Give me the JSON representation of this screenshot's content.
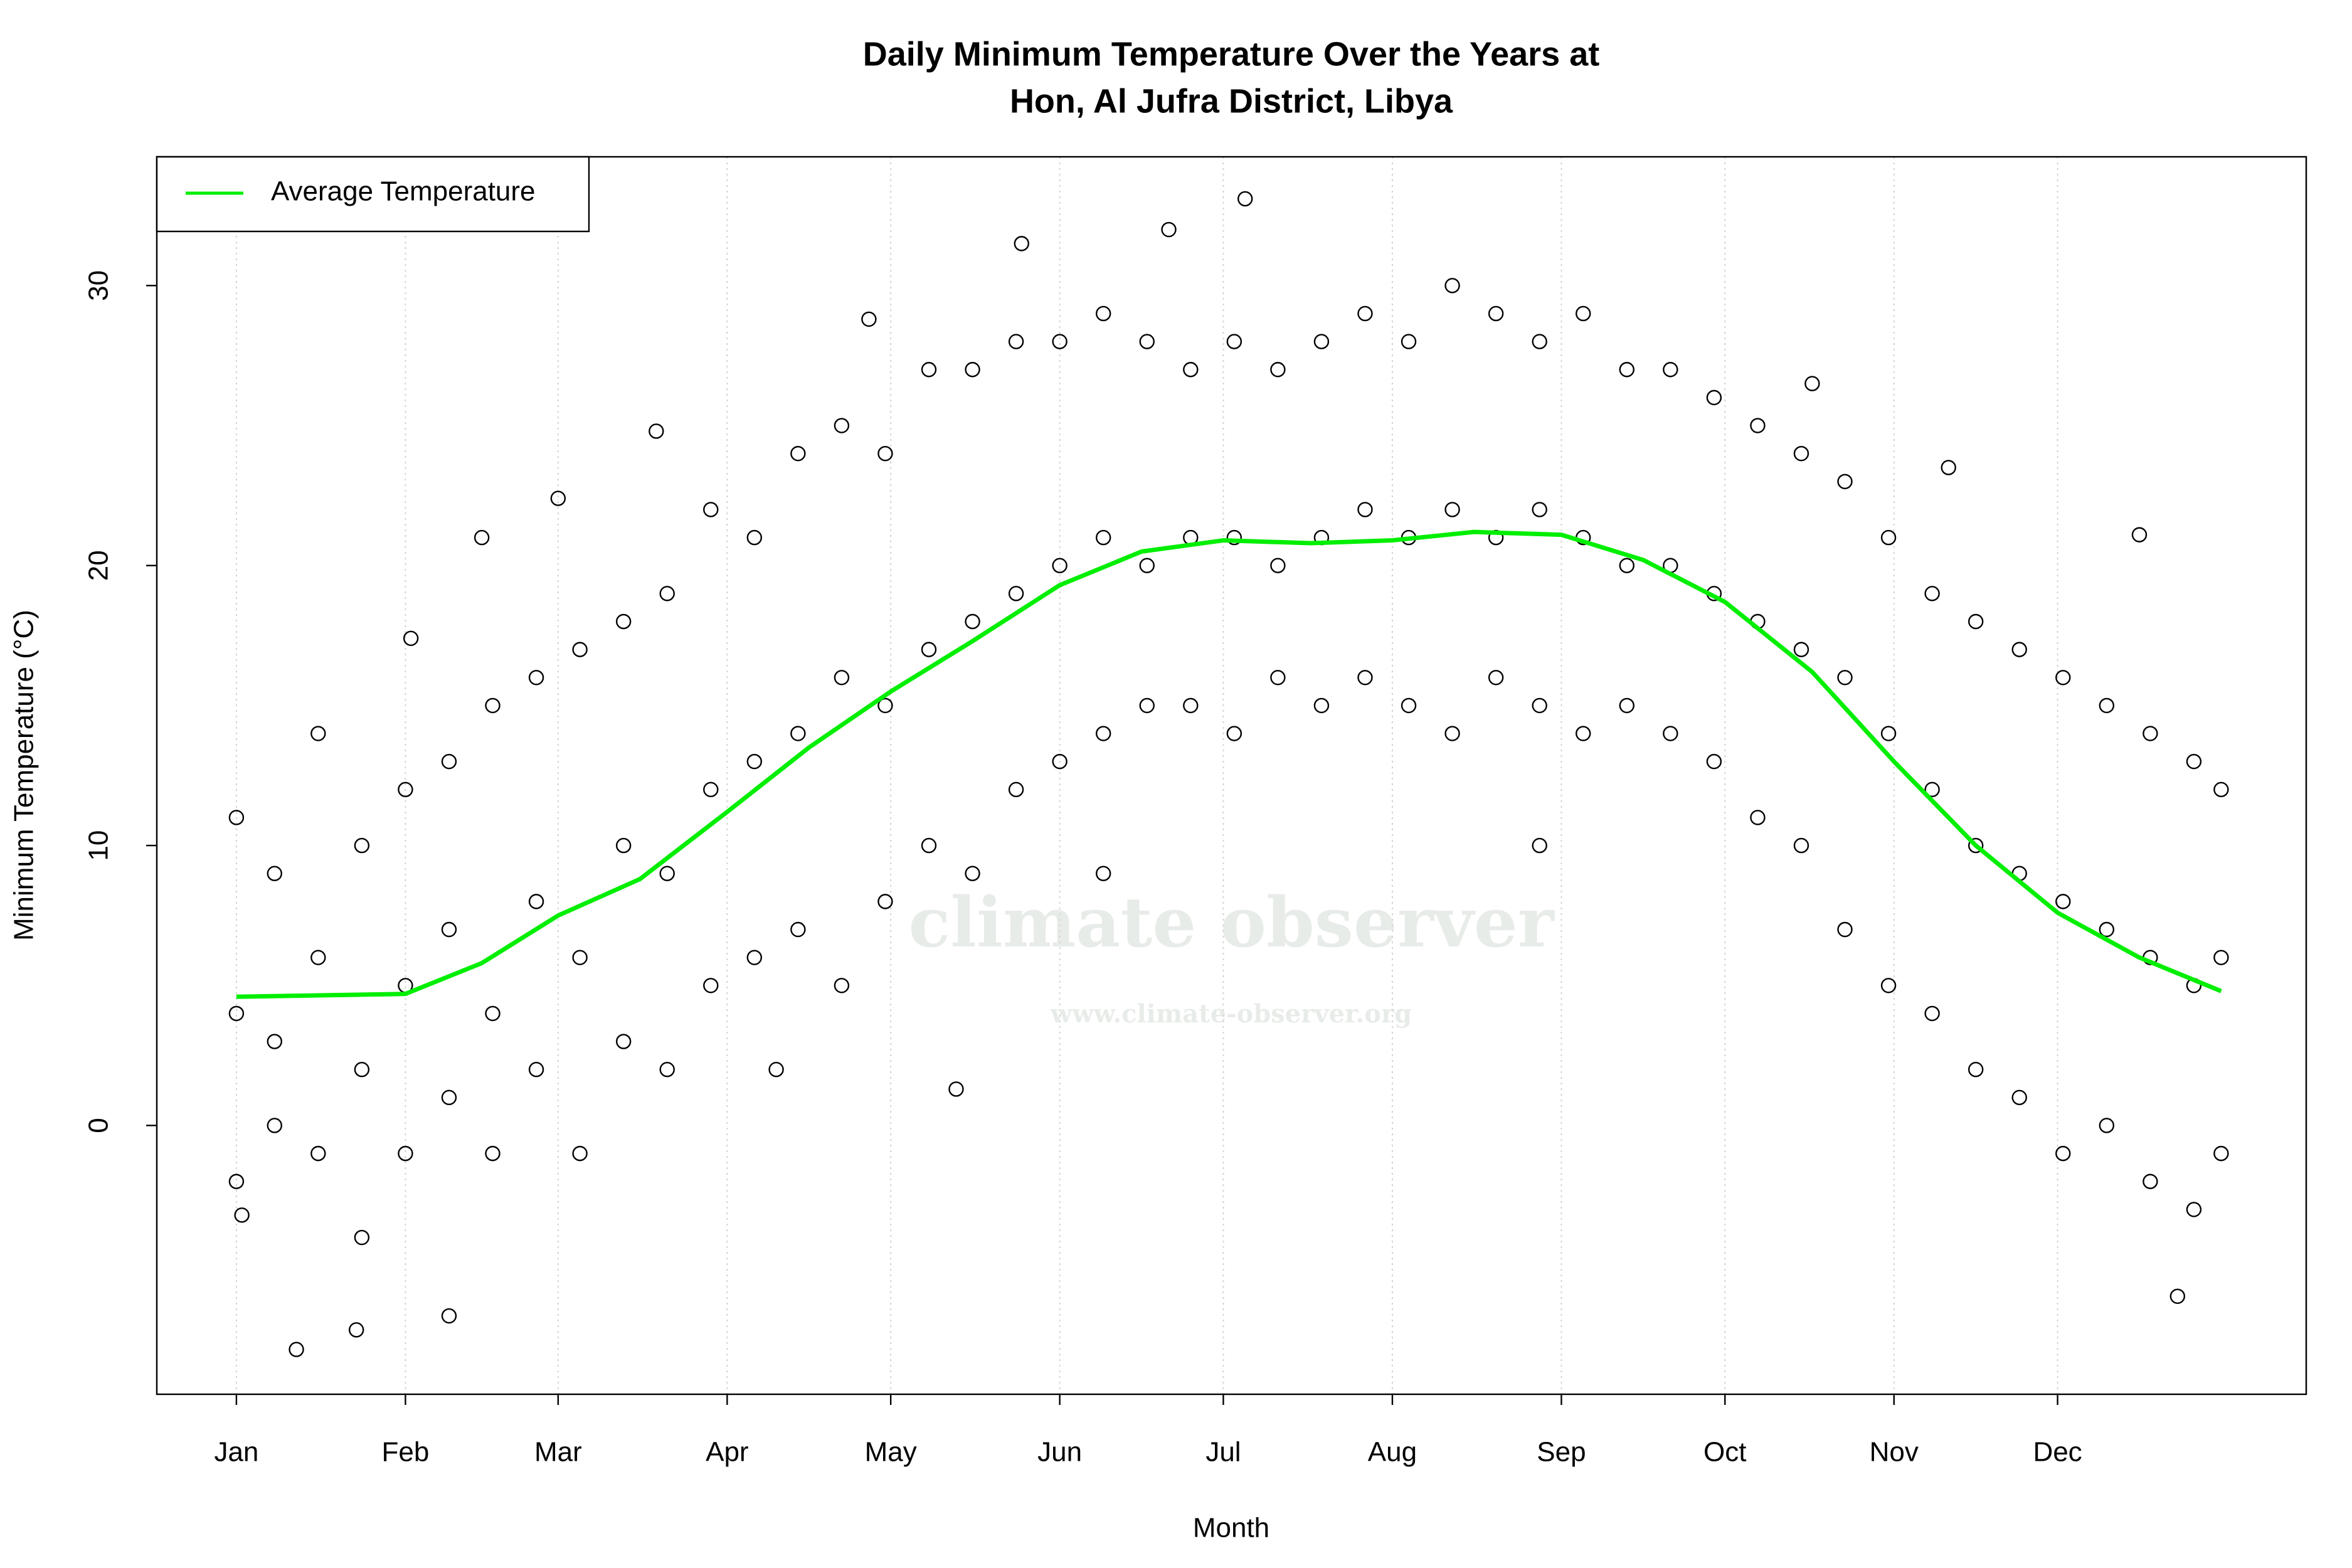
{
  "chart_data": {
    "type": "scatter",
    "title": [
      "Daily Minimum Temperature Over the Years at",
      "Hon, Al Jufra District, Libya"
    ],
    "x_label": "Month",
    "y_label": "Minimum Temperature (°C)",
    "watermark": "climate observer",
    "watermark_url": "www.climate-observer.org",
    "xlim": [
      -13.6,
      380.6
    ],
    "ylim": [
      -9.6,
      34.6
    ],
    "xticks": [
      {
        "value": 1,
        "label": "Jan"
      },
      {
        "value": 32,
        "label": "Feb"
      },
      {
        "value": 60,
        "label": "Mar"
      },
      {
        "value": 91,
        "label": "Apr"
      },
      {
        "value": 121,
        "label": "May"
      },
      {
        "value": 152,
        "label": "Jun"
      },
      {
        "value": 182,
        "label": "Jul"
      },
      {
        "value": 213,
        "label": "Aug"
      },
      {
        "value": 244,
        "label": "Sep"
      },
      {
        "value": 274,
        "label": "Oct"
      },
      {
        "value": 305,
        "label": "Nov"
      },
      {
        "value": 335,
        "label": "Dec"
      }
    ],
    "yticks": [
      0,
      10,
      20,
      30
    ],
    "grid": true,
    "legend": "top-left",
    "points": {
      "color": "#000000",
      "x": [
        1,
        1,
        1,
        8,
        8,
        8,
        16,
        16,
        16,
        24,
        24,
        24,
        32,
        32,
        32,
        40,
        40,
        40,
        48,
        48,
        48,
        56,
        56,
        56,
        64,
        64,
        64,
        72,
        72,
        72,
        80,
        80,
        80,
        88,
        88,
        88,
        96,
        96,
        96,
        104,
        104,
        104,
        112,
        112,
        112,
        120,
        120,
        120,
        128,
        128,
        128,
        136,
        136,
        136,
        144,
        144,
        144,
        152,
        152,
        152,
        160,
        160,
        160,
        168,
        168,
        168,
        176,
        176,
        176,
        184,
        184,
        184,
        192,
        192,
        192,
        200,
        200,
        200,
        208,
        208,
        208,
        216,
        216,
        216,
        224,
        224,
        224,
        232,
        232,
        232,
        240,
        240,
        240,
        248,
        248,
        248,
        256,
        256,
        256,
        264,
        264,
        264,
        272,
        272,
        272,
        280,
        280,
        280,
        288,
        288,
        288,
        296,
        296,
        296,
        304,
        304,
        304,
        312,
        312,
        312,
        320,
        320,
        320,
        328,
        328,
        328,
        336,
        336,
        336,
        344,
        344,
        344,
        352,
        352,
        352,
        360,
        360,
        360,
        365,
        365,
        365,
        2,
        12,
        23,
        40,
        33,
        46,
        78,
        117,
        133,
        145,
        172,
        186,
        160,
        240,
        290,
        315,
        350,
        357,
        100,
        60
      ],
      "values": [
        11,
        4,
        -2,
        9,
        3,
        0,
        14,
        6,
        -1,
        10,
        2,
        -4,
        12,
        5,
        -1,
        13,
        7,
        1,
        15,
        4,
        -1,
        16,
        8,
        2,
        17,
        6,
        -1,
        18,
        10,
        3,
        19,
        9,
        2,
        22,
        12,
        5,
        21,
        13,
        6,
        24,
        14,
        7,
        25,
        16,
        5,
        24,
        15,
        8,
        27,
        17,
        10,
        27,
        18,
        9,
        28,
        19,
        12,
        28,
        20,
        13,
        29,
        21,
        14,
        28,
        20,
        15,
        27,
        21,
        15,
        28,
        21,
        14,
        27,
        20,
        16,
        28,
        21,
        15,
        29,
        22,
        16,
        28,
        21,
        15,
        30,
        22,
        14,
        29,
        21,
        16,
        28,
        22,
        15,
        29,
        21,
        14,
        27,
        20,
        15,
        27,
        20,
        14,
        26,
        19,
        13,
        25,
        18,
        11,
        24,
        17,
        10,
        23,
        16,
        7,
        21,
        14,
        5,
        19,
        12,
        4,
        18,
        10,
        2,
        17,
        9,
        1,
        16,
        8,
        -1,
        15,
        7,
        0,
        14,
        6,
        -2,
        13,
        5,
        -3,
        12,
        6,
        -1,
        -3.2,
        -8,
        -7.3,
        -6.8,
        17.4,
        21,
        24.8,
        28.8,
        1.3,
        31.5,
        32,
        33.1,
        9,
        10,
        26.5,
        23.5,
        21.1,
        -6.1,
        2,
        22.4
      ]
    },
    "series": [
      {
        "name": "Average Temperature",
        "color": "#00ee00",
        "x": [
          1,
          32,
          46,
          60,
          75,
          91,
          106,
          121,
          136,
          152,
          167,
          182,
          198,
          213,
          228,
          244,
          259,
          274,
          290,
          305,
          320,
          335,
          350,
          365
        ],
        "values": [
          4.6,
          4.7,
          5.8,
          7.5,
          8.8,
          11.2,
          13.5,
          15.5,
          17.3,
          19.3,
          20.5,
          20.9,
          20.8,
          20.9,
          21.2,
          21.1,
          20.2,
          18.7,
          16.2,
          13.0,
          10.0,
          7.6,
          6.0,
          4.8
        ]
      }
    ]
  }
}
